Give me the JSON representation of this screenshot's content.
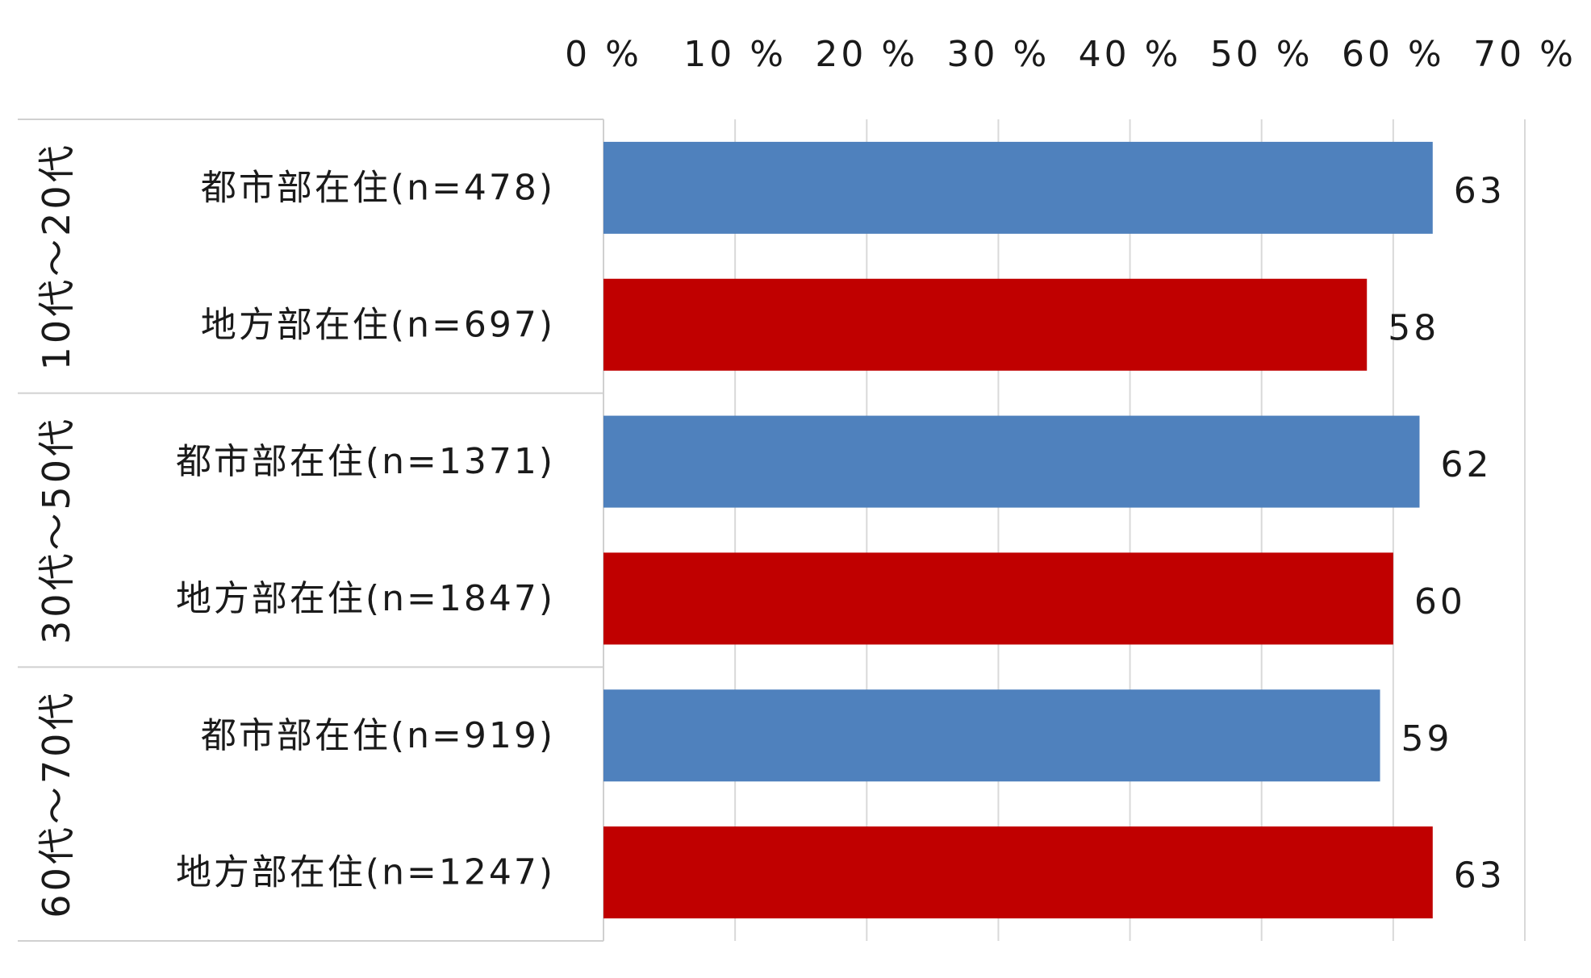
{
  "chart_data": {
    "type": "bar",
    "orientation": "horizontal",
    "x_axis": {
      "ticks": [
        "0 %",
        "10 %",
        "20 %",
        "30 %",
        "40 %",
        "50 %",
        "60 %",
        "70 %"
      ],
      "range": [
        0,
        70
      ],
      "position": "top",
      "grid": true
    },
    "groups": [
      {
        "label": "10代～20代",
        "rows": [
          {
            "label": "都市部在住(n=478)",
            "value": 63,
            "value_label": "63",
            "color": "#4f81bd"
          },
          {
            "label": "地方部在住(n=697)",
            "value": 58,
            "value_label": "58",
            "color": "#c00000"
          }
        ]
      },
      {
        "label": "30代～50代",
        "rows": [
          {
            "label": "都市部在住(n=1371)",
            "value": 62,
            "value_label": "62",
            "color": "#4f81bd"
          },
          {
            "label": "地方部在住(n=1847)",
            "value": 60,
            "value_label": "60",
            "color": "#c00000"
          }
        ]
      },
      {
        "label": "60代～70代",
        "rows": [
          {
            "label": "都市部在住(n=919)",
            "value": 59,
            "value_label": "59",
            "color": "#4f81bd"
          },
          {
            "label": "地方部在住(n=1247)",
            "value": 63,
            "value_label": "63",
            "color": "#c00000"
          }
        ]
      }
    ]
  }
}
